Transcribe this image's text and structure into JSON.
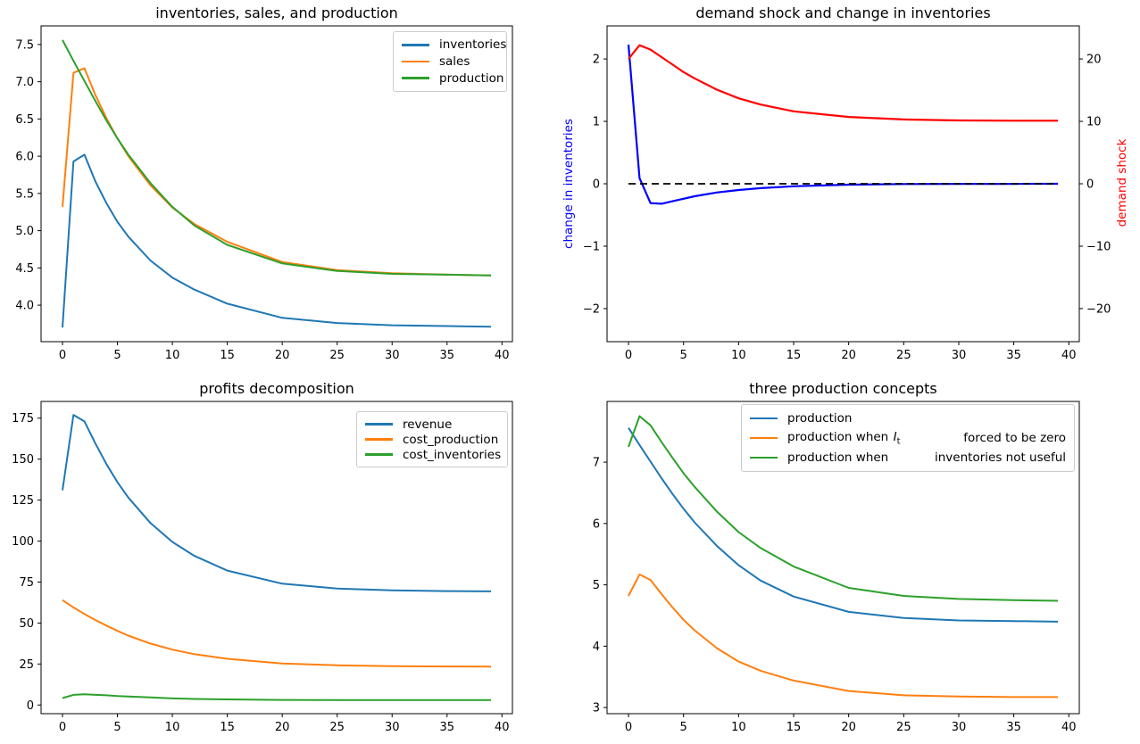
{
  "figure": {
    "background": "#ffffff"
  },
  "colors": {
    "tab_blue": "#1f77b4",
    "tab_orange": "#ff7f0e",
    "tab_green": "#2ca02c",
    "pure_blue": "#0000ff",
    "pure_red": "#ff0000",
    "black": "#000000"
  },
  "chart_data": [
    {
      "type": "line",
      "title": "inventories, sales, and production",
      "x": [
        0,
        1,
        2,
        3,
        4,
        5,
        6,
        8,
        10,
        12,
        15,
        20,
        25,
        30,
        35,
        39
      ],
      "xlim": [
        -1.95,
        40.95
      ],
      "ylim": [
        3.51,
        7.75
      ],
      "xticks": [
        0,
        5,
        10,
        15,
        20,
        25,
        30,
        35,
        40
      ],
      "yticks": [
        {
          "v": 4.0,
          "label": "4.0"
        },
        {
          "v": 4.5,
          "label": "4.5"
        },
        {
          "v": 5.0,
          "label": "5.0"
        },
        {
          "v": 5.5,
          "label": "5.5"
        },
        {
          "v": 6.0,
          "label": "6.0"
        },
        {
          "v": 6.5,
          "label": "6.5"
        },
        {
          "v": 7.0,
          "label": "7.0"
        },
        {
          "v": 7.5,
          "label": "7.5"
        }
      ],
      "grid": false,
      "legend": {
        "position": "upper right",
        "items": [
          {
            "label": "inventories"
          },
          {
            "label": "sales"
          },
          {
            "label": "production"
          }
        ]
      },
      "series": [
        {
          "name": "inventories",
          "color": "#1f77b4",
          "values": [
            3.7,
            5.93,
            6.02,
            5.66,
            5.37,
            5.12,
            4.92,
            4.6,
            4.37,
            4.21,
            4.02,
            3.83,
            3.76,
            3.73,
            3.72,
            3.71
          ]
        },
        {
          "name": "sales",
          "color": "#ff7f0e",
          "values": [
            5.32,
            7.12,
            7.18,
            6.82,
            6.51,
            6.24,
            6.0,
            5.61,
            5.31,
            5.09,
            4.85,
            4.58,
            4.47,
            4.43,
            4.41,
            4.4
          ]
        },
        {
          "name": "production",
          "color": "#2ca02c",
          "values": [
            7.56,
            7.28,
            7.01,
            6.74,
            6.48,
            6.24,
            6.02,
            5.64,
            5.32,
            5.07,
            4.81,
            4.56,
            4.46,
            4.42,
            4.41,
            4.4
          ]
        }
      ]
    },
    {
      "type": "line",
      "title": "demand shock and change in inventories",
      "x": [
        0,
        1,
        2,
        3,
        4,
        5,
        6,
        8,
        10,
        12,
        15,
        20,
        25,
        30,
        35,
        39
      ],
      "xlim": [
        -1.95,
        40.95
      ],
      "ylim": [
        -2.53,
        2.53
      ],
      "xticks": [
        0,
        5,
        10,
        15,
        20,
        25,
        30,
        35,
        40
      ],
      "yticks": [
        {
          "v": -2,
          "label": "−2"
        },
        {
          "v": -1,
          "label": "−1"
        },
        {
          "v": 0,
          "label": "0"
        },
        {
          "v": 1,
          "label": "1"
        },
        {
          "v": 2,
          "label": "2"
        }
      ],
      "yticks_right": {
        "scale": 10,
        "ticks": [
          {
            "v": -20,
            "label": "−20"
          },
          {
            "v": -10,
            "label": "−10"
          },
          {
            "v": 0,
            "label": "0"
          },
          {
            "v": 10,
            "label": "10"
          },
          {
            "v": 20,
            "label": "20"
          }
        ]
      },
      "ylabel_left": {
        "text": "change in inventories",
        "color": "#0000ff"
      },
      "ylabel_right": {
        "text": "demand shock",
        "color": "#ff0000"
      },
      "grid": false,
      "series": [
        {
          "name": "change in inventories",
          "axis": "left",
          "color": "#0000ff",
          "width": 2.2,
          "values": [
            2.23,
            0.09,
            -0.31,
            -0.32,
            -0.28,
            -0.24,
            -0.2,
            -0.14,
            -0.1,
            -0.07,
            -0.04,
            -0.015,
            -0.005,
            -0.002,
            -0.001,
            0.0
          ]
        },
        {
          "name": "zero reference line",
          "axis": "left",
          "color": "#000000",
          "width": 1.8,
          "dash": true,
          "x": [
            0,
            39
          ],
          "values": [
            0,
            0
          ]
        },
        {
          "name": "demand shock",
          "axis": "right",
          "color": "#ff0000",
          "width": 2.2,
          "values": [
            20.0,
            22.2,
            21.5,
            20.3,
            19.1,
            17.9,
            16.9,
            15.1,
            13.7,
            12.7,
            11.6,
            10.7,
            10.3,
            10.15,
            10.1,
            10.1
          ]
        }
      ]
    },
    {
      "type": "line",
      "title": "profits decomposition",
      "x": [
        0,
        1,
        2,
        3,
        4,
        5,
        6,
        8,
        10,
        12,
        15,
        20,
        25,
        30,
        35,
        39
      ],
      "xlim": [
        -1.95,
        40.95
      ],
      "ylim": [
        -5.3,
        185.2
      ],
      "xticks": [
        0,
        5,
        10,
        15,
        20,
        25,
        30,
        35,
        40
      ],
      "yticks": [
        {
          "v": 0,
          "label": "0"
        },
        {
          "v": 25,
          "label": "25"
        },
        {
          "v": 50,
          "label": "50"
        },
        {
          "v": 75,
          "label": "75"
        },
        {
          "v": 100,
          "label": "100"
        },
        {
          "v": 125,
          "label": "125"
        },
        {
          "v": 150,
          "label": "150"
        },
        {
          "v": 175,
          "label": "175"
        }
      ],
      "grid": false,
      "legend": {
        "position": "upper right",
        "items": [
          {
            "label": "revenue"
          },
          {
            "label": "cost_production"
          },
          {
            "label": "cost_inventories"
          }
        ]
      },
      "series": [
        {
          "name": "revenue",
          "color": "#1f77b4",
          "values": [
            131,
            177,
            173,
            159.5,
            147,
            136,
            126.5,
            111,
            99.5,
            91,
            82,
            74,
            71,
            70,
            69.5,
            69.3
          ]
        },
        {
          "name": "cost_production",
          "color": "#ff7f0e",
          "values": [
            64,
            59.5,
            55.5,
            51.8,
            48.4,
            45.2,
            42.3,
            37.5,
            33.8,
            31,
            28.2,
            25.3,
            24.2,
            23.7,
            23.5,
            23.4
          ]
        },
        {
          "name": "cost_inventories",
          "color": "#2ca02c",
          "values": [
            4.2,
            6.2,
            6.5,
            6.2,
            5.9,
            5.5,
            5.2,
            4.6,
            4.0,
            3.7,
            3.4,
            3.1,
            3.0,
            3.0,
            3.0,
            3.0
          ]
        }
      ]
    },
    {
      "type": "line",
      "title": "three production concepts",
      "x": [
        0,
        1,
        2,
        3,
        4,
        5,
        6,
        8,
        10,
        12,
        15,
        20,
        25,
        30,
        35,
        39
      ],
      "xlim": [
        -1.95,
        40.95
      ],
      "ylim": [
        2.9,
        7.99
      ],
      "xticks": [
        0,
        5,
        10,
        15,
        20,
        25,
        30,
        35,
        40
      ],
      "yticks": [
        {
          "v": 3,
          "label": "3"
        },
        {
          "v": 4,
          "label": "4"
        },
        {
          "v": 5,
          "label": "5"
        },
        {
          "v": 6,
          "label": "6"
        },
        {
          "v": 7,
          "label": "7"
        }
      ],
      "grid": false,
      "legend": {
        "position": "upper center wide",
        "items": [
          {
            "label": "production"
          },
          {
            "prefix": "production when",
            "math_var": "I",
            "math_sub": "t",
            "suffix": "forced to be zero"
          },
          {
            "prefix": "production when",
            "suffix": "inventories not useful"
          }
        ]
      },
      "series": [
        {
          "name": "production",
          "color": "#1f77b4",
          "values": [
            7.56,
            7.28,
            7.01,
            6.74,
            6.48,
            6.24,
            6.02,
            5.64,
            5.32,
            5.07,
            4.81,
            4.56,
            4.46,
            4.42,
            4.41,
            4.4
          ]
        },
        {
          "name": "production when I_t forced to be zero",
          "color": "#ff7f0e",
          "values": [
            4.82,
            5.17,
            5.08,
            4.85,
            4.63,
            4.43,
            4.26,
            3.97,
            3.75,
            3.6,
            3.44,
            3.27,
            3.2,
            3.18,
            3.17,
            3.17
          ]
        },
        {
          "name": "production when inventories not useful",
          "color": "#2ca02c",
          "values": [
            7.25,
            7.75,
            7.6,
            7.33,
            7.07,
            6.82,
            6.6,
            6.2,
            5.86,
            5.6,
            5.3,
            4.95,
            4.82,
            4.77,
            4.75,
            4.74
          ]
        }
      ]
    }
  ]
}
